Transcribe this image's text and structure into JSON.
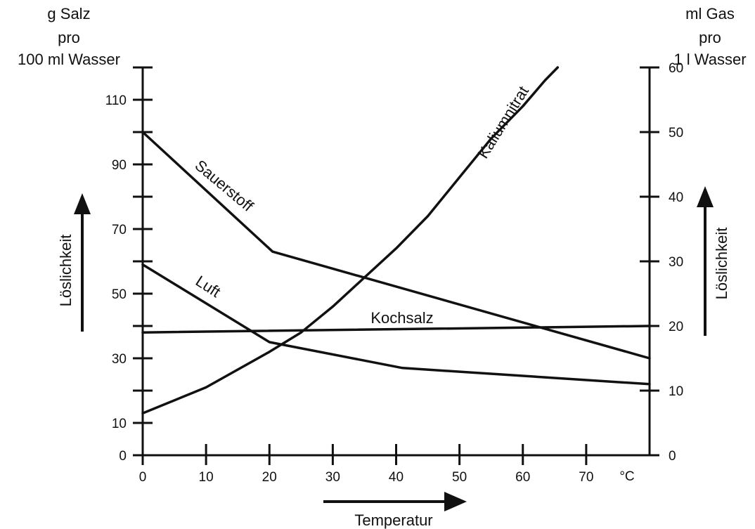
{
  "chart_data": {
    "type": "line",
    "x": {
      "ticks": [
        0,
        10,
        20,
        30,
        40,
        50,
        60,
        70
      ],
      "unit": "°C",
      "label": "Temperatur",
      "range": [
        0,
        80
      ]
    },
    "y_left": {
      "title_lines": [
        "g Salz",
        "pro",
        "100 ml Wasser"
      ],
      "range": [
        0,
        120
      ],
      "tick_labels": [
        0,
        10,
        30,
        50,
        70,
        90,
        110
      ],
      "ticks": [
        0,
        10,
        20,
        30,
        40,
        50,
        60,
        70,
        80,
        90,
        100,
        110,
        120
      ],
      "arrow_label": "Löslichkeit"
    },
    "y_right": {
      "title_lines": [
        "ml Gas",
        "pro",
        "1 l Wasser"
      ],
      "range": [
        0,
        60
      ],
      "tick_labels": [
        0,
        10,
        20,
        30,
        40,
        50,
        60
      ],
      "arrow_label": "Löslichkeit"
    },
    "series": [
      {
        "name": "Kaliumnitrat",
        "axis": "left",
        "points": [
          [
            0,
            13
          ],
          [
            10,
            21
          ],
          [
            20,
            32
          ],
          [
            25,
            38
          ],
          [
            30,
            46
          ],
          [
            35,
            55
          ],
          [
            40,
            64
          ],
          [
            45,
            74
          ],
          [
            50,
            86
          ],
          [
            55,
            98
          ],
          [
            60,
            108
          ],
          [
            63.5,
            116
          ],
          [
            65.5,
            120
          ]
        ]
      },
      {
        "name": "Sauerstoff",
        "axis": "right",
        "points": [
          [
            0,
            50
          ],
          [
            20.5,
            31.5
          ],
          [
            80,
            15
          ]
        ]
      },
      {
        "name": "Luft",
        "axis": "right",
        "points": [
          [
            0,
            29.5
          ],
          [
            20,
            17.5
          ],
          [
            41,
            13.5
          ],
          [
            80,
            11
          ]
        ]
      },
      {
        "name": "Kochsalz",
        "axis": "left",
        "points": [
          [
            0,
            38
          ],
          [
            80,
            40
          ]
        ]
      }
    ],
    "grid": false,
    "legend": "none"
  }
}
